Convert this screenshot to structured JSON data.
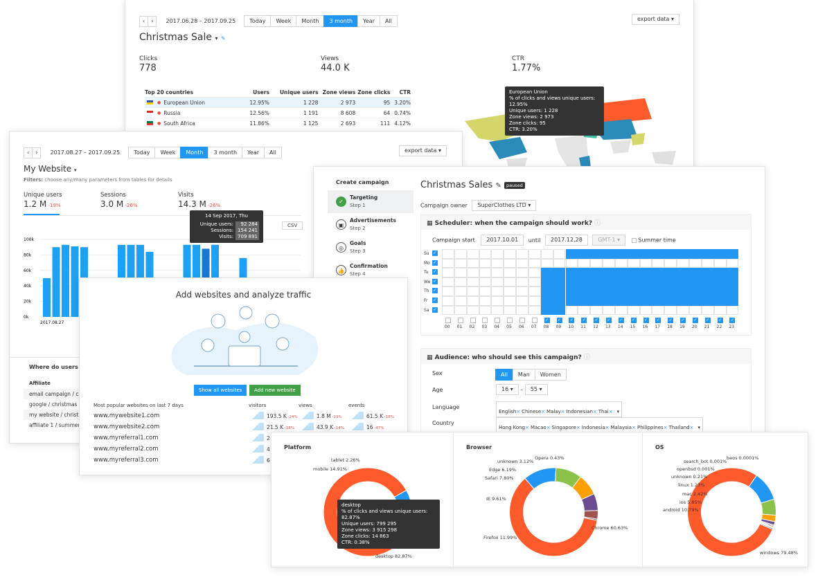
{
  "c1": {
    "date_range": "2017.06.28 – 2017.09.25",
    "periods": [
      "Today",
      "Week",
      "Month",
      "3 month",
      "Year",
      "All"
    ],
    "active_period": "3 month",
    "export": "export data",
    "title": "Christmas Sale",
    "stats": [
      {
        "label": "Clicks",
        "value": "778"
      },
      {
        "label": "Views",
        "value": "44.0 K"
      },
      {
        "label": "CTR",
        "value": "1.77%"
      }
    ],
    "table": {
      "headers": [
        "Top 20 countries",
        "Users",
        "Unique users",
        "Zone views",
        "Zone clicks",
        "CTR"
      ],
      "rows": [
        {
          "name": "European Union",
          "cells": [
            "12.95%",
            "1 228",
            "2 973",
            "95",
            "3.20%"
          ]
        },
        {
          "name": "Russia",
          "cells": [
            "12.56%",
            "1 191",
            "8 608",
            "64",
            "0.74%"
          ]
        },
        {
          "name": "South Africa",
          "cells": [
            "11.86%",
            "1 125",
            "2 693",
            "111",
            "4.12%"
          ]
        }
      ]
    },
    "map_tooltip": [
      "European Union",
      "% of clicks and views unique users: 12.95%",
      "Unique users: 1 228",
      "Zone views: 2 973",
      "Zone clicks: 95",
      "CTR: 3.20%"
    ]
  },
  "c2": {
    "date_range": "2017.08.27 – 2017.09.25",
    "periods": [
      "Today",
      "Week",
      "Month",
      "3 month",
      "Year",
      "All"
    ],
    "active_period": "Month",
    "export": "export data",
    "title": "My Website",
    "filters_label": "Filters:",
    "filters_text": "choose any/many parameters from tables for details",
    "metrics": [
      {
        "label": "Unique users",
        "value": "1.2 M",
        "delta": "-19%"
      },
      {
        "label": "Sessions",
        "value": "3.0 M",
        "delta": "-26%"
      },
      {
        "label": "Visits",
        "value": "14.3 M",
        "delta": "-26%"
      }
    ],
    "csv": "CSV",
    "y_ticks": [
      "100k",
      "80k",
      "60k",
      "40k",
      "20k",
      "0k"
    ],
    "x_label": "2017.08.27",
    "tooltip": {
      "date": "14 Sep 2017, Thu",
      "rows": [
        {
          "k": "Unique users:",
          "v": "92 284"
        },
        {
          "k": "Sessions:",
          "v": "154 241"
        },
        {
          "k": "Visits:",
          "v": "709 891"
        }
      ]
    },
    "section": "Where do users co",
    "affiliate_head": "Affiliate",
    "affiliates": [
      "email campaign / ch",
      "google / christmas s",
      "my website / christ",
      "affiliate 1 / summer"
    ]
  },
  "chart_data": {
    "type": "bar",
    "x_start": "2017.08.27",
    "values": [
      50,
      90,
      93,
      91,
      90,
      null,
      null,
      null,
      93,
      93,
      93,
      84,
      null,
      null,
      null,
      93,
      93,
      88,
      93,
      null,
      null,
      76
    ],
    "ylim": [
      0,
      100
    ],
    "y_unit": "k",
    "color": "#1ea1f2"
  },
  "c3": {
    "title": "Add websites and analyze traffic",
    "btn_show": "Show all websites",
    "btn_add": "Add new website",
    "list_head": "Most popular websites on last 7 days",
    "cols": [
      "visitors",
      "views",
      "events"
    ],
    "sites": [
      {
        "name": "www.mywebsite1.com",
        "visitors": "193.5 K",
        "vd": "-24%",
        "views": "1.8 M",
        "wd": "-23%",
        "events": "61.5 K",
        "ed": "-18%"
      },
      {
        "name": "www.mywebsite2.com",
        "visitors": "21.5 K",
        "vd": "-18%",
        "views": "43.9 K",
        "wd": "-14%",
        "events": "16",
        "ed": "-47%"
      },
      {
        "name": "www.myreferral1.com",
        "visitors": "2",
        "vd": "",
        "views": "",
        "wd": "",
        "events": "",
        "ed": ""
      },
      {
        "name": "www.myreferral2.com",
        "visitors": "4",
        "vd": "",
        "views": "",
        "wd": "",
        "events": "",
        "ed": ""
      },
      {
        "name": "www.myreferral3.com",
        "visitors": "6",
        "vd": "",
        "views": "",
        "wd": "",
        "events": "",
        "ed": ""
      }
    ]
  },
  "c4": {
    "create": "Create campaign",
    "steps": [
      {
        "title": "Targeting",
        "sub": "Step 1"
      },
      {
        "title": "Advertisements",
        "sub": "Step 2"
      },
      {
        "title": "Goals",
        "sub": "Step 3"
      },
      {
        "title": "Confirmation",
        "sub": "Step 4"
      }
    ],
    "title": "Christmas Sales",
    "badge": "paused",
    "owner_label": "Campaign owner",
    "owner": "SuperClothes LTD",
    "scheduler_title": "Scheduler: when the campaign should work?",
    "start_label": "Campaign start",
    "start": "2017.10.01",
    "until": "until",
    "end": "2017.12.28",
    "gmt": "GMT-1",
    "summer": "Summer time",
    "days": [
      "Su",
      "Mo",
      "Tu",
      "We",
      "Th",
      "Fr",
      "Sa"
    ],
    "hours": [
      "00",
      "01",
      "02",
      "03",
      "04",
      "05",
      "06",
      "07",
      "08",
      "09",
      "10",
      "11",
      "12",
      "13",
      "14",
      "15",
      "16",
      "17",
      "18",
      "19",
      "20",
      "21",
      "22",
      "23"
    ],
    "audience_title": "Audience: who should see this campaign?",
    "sex_label": "Sex",
    "sex": [
      "All",
      "Man",
      "Women"
    ],
    "age_label": "Age",
    "age_from": "16",
    "age_to": "55",
    "lang_label": "Language",
    "langs": [
      "English",
      "Chinese",
      "Malay",
      "Indonesian",
      "Thai"
    ],
    "country_label": "Country",
    "countries": [
      "Hong Kong",
      "Macao",
      "Singapore",
      "Indonesia",
      "Malaysia",
      "Philippines",
      "Thailand"
    ]
  },
  "c5": {
    "donuts": [
      {
        "title": "Platform",
        "slices": [
          {
            "label": "desktop 82.87%",
            "v": 82.87,
            "c": "#ff5a2b"
          },
          {
            "label": "mobile 14.91%",
            "v": 14.91,
            "c": "#2196f3"
          },
          {
            "label": "tablet 2.26%",
            "v": 2.26,
            "c": "#8bc34a"
          }
        ]
      },
      {
        "title": "Browser",
        "slices": [
          {
            "label": "Chrome 60.63%",
            "v": 60.63,
            "c": "#ff5a2b"
          },
          {
            "label": "Firefox 11.99%",
            "v": 11.99,
            "c": "#2196f3"
          },
          {
            "label": "IE 9.61%",
            "v": 9.61,
            "c": "#8bc34a"
          },
          {
            "label": "Safari 7.80%",
            "v": 7.8,
            "c": "#ffa000"
          },
          {
            "label": "Edge 6.19%",
            "v": 6.19,
            "c": "#6a4c93"
          },
          {
            "label": "unknown 3.12%",
            "v": 3.12,
            "c": "#a0524d"
          },
          {
            "label": "Opera 0.43%",
            "v": 0.43,
            "c": "#333333"
          }
        ]
      },
      {
        "title": "OS",
        "slices": [
          {
            "label": "windows 79.48%",
            "v": 79.48,
            "c": "#ff5a2b"
          },
          {
            "label": "android 10.79%",
            "v": 10.79,
            "c": "#2196f3"
          },
          {
            "label": "ios 5.85%",
            "v": 5.85,
            "c": "#8bc34a"
          },
          {
            "label": "mac 2.42%",
            "v": 2.42,
            "c": "#ffa000"
          },
          {
            "label": "linux 1.23%",
            "v": 1.23,
            "c": "#6a4c93"
          },
          {
            "label": "unknown 0.21%",
            "v": 0.21,
            "c": "#a0524d"
          },
          {
            "label": "openbsd 0.001%",
            "v": 0.001,
            "c": "#444444"
          },
          {
            "label": "search_bot 0.001%",
            "v": 0.001,
            "c": "#ffd54f"
          },
          {
            "label": "beos 0.0001%",
            "v": 0.0001,
            "c": "#1565c0"
          }
        ]
      }
    ],
    "tooltip": [
      "desktop",
      "% of clicks and views unique users: 82.87%",
      "Unique users: 799 295",
      "Zone views: 3 915 298",
      "Zone clicks: 14 863",
      "CTR: 0.38%"
    ]
  }
}
